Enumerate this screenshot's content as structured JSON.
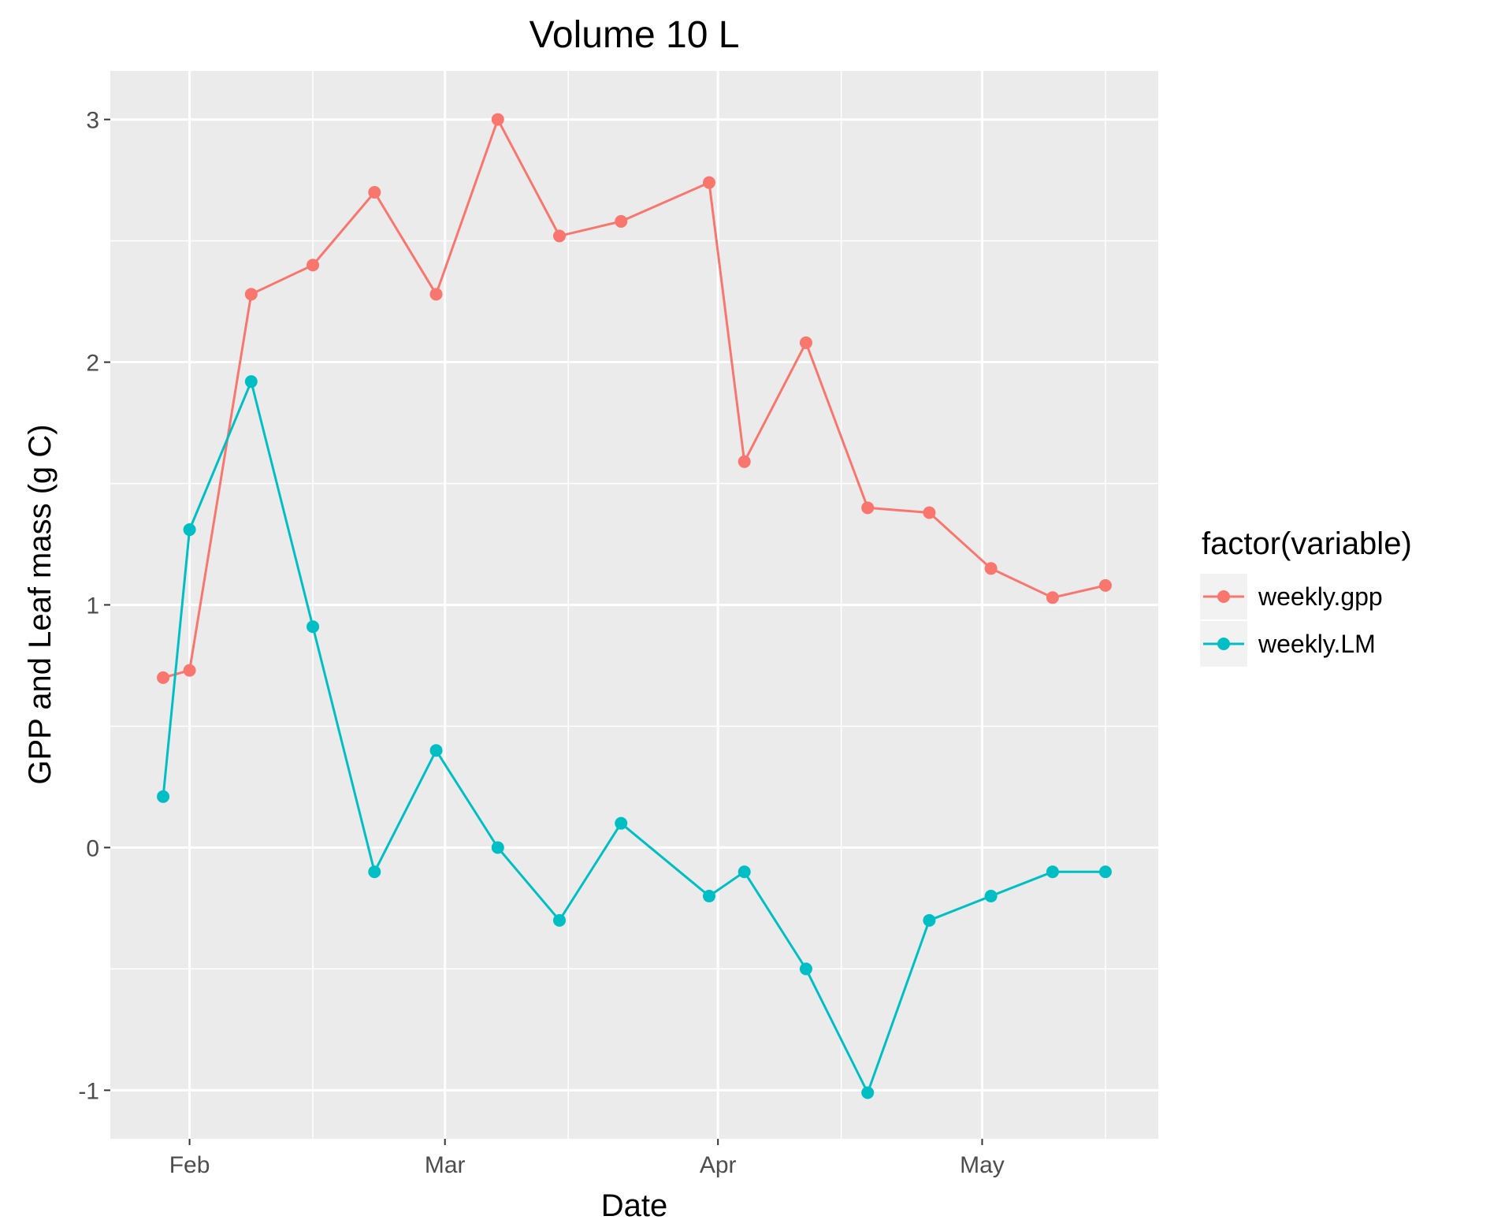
{
  "chart_data": {
    "type": "line",
    "title": "Volume 10 L",
    "xlabel": "Date",
    "ylabel": "GPP and Leaf mass (g C)",
    "x": [
      "2016-01-29",
      "2016-02-01",
      "2016-02-08",
      "2016-02-15",
      "2016-02-22",
      "2016-02-29",
      "2016-03-07",
      "2016-03-14",
      "2016-03-21",
      "2016-03-31",
      "2016-04-04",
      "2016-04-11",
      "2016-04-18",
      "2016-04-25",
      "2016-05-02",
      "2016-05-09",
      "2016-05-15"
    ],
    "x_ticks": [
      {
        "label": "Feb",
        "date": "2016-02-01"
      },
      {
        "label": "Mar",
        "date": "2016-03-01"
      },
      {
        "label": "Apr",
        "date": "2016-04-01"
      },
      {
        "label": "May",
        "date": "2016-05-01"
      }
    ],
    "x_minor_ticks": [
      "2016-02-15",
      "2016-03-15",
      "2016-04-15",
      "2016-05-15"
    ],
    "xlim": [
      "2016-01-23",
      "2016-05-21"
    ],
    "y_ticks": [
      -1,
      0,
      1,
      2,
      3
    ],
    "y_minor_ticks": [
      -0.5,
      0.5,
      1.5,
      2.5
    ],
    "ylim": [
      -1.2,
      3.2
    ],
    "grid": true,
    "legend_position": "right",
    "legend_title": "factor(variable)",
    "series": [
      {
        "name": "weekly.gpp",
        "color": "#F8766D",
        "values": [
          0.7,
          0.73,
          2.28,
          2.4,
          2.7,
          2.28,
          3.0,
          2.52,
          2.58,
          2.74,
          1.59,
          2.08,
          1.4,
          1.38,
          1.15,
          1.03,
          1.08
        ]
      },
      {
        "name": "weekly.LM",
        "color": "#00BFC4",
        "values": [
          0.21,
          1.31,
          1.92,
          0.91,
          -0.1,
          0.4,
          0.0,
          -0.3,
          0.1,
          -0.2,
          -0.1,
          -0.5,
          -1.01,
          -0.3,
          -0.2,
          -0.1,
          -0.1
        ]
      }
    ],
    "panel_color": "#EBEBEB",
    "gridline_color": "#FFFFFF"
  }
}
